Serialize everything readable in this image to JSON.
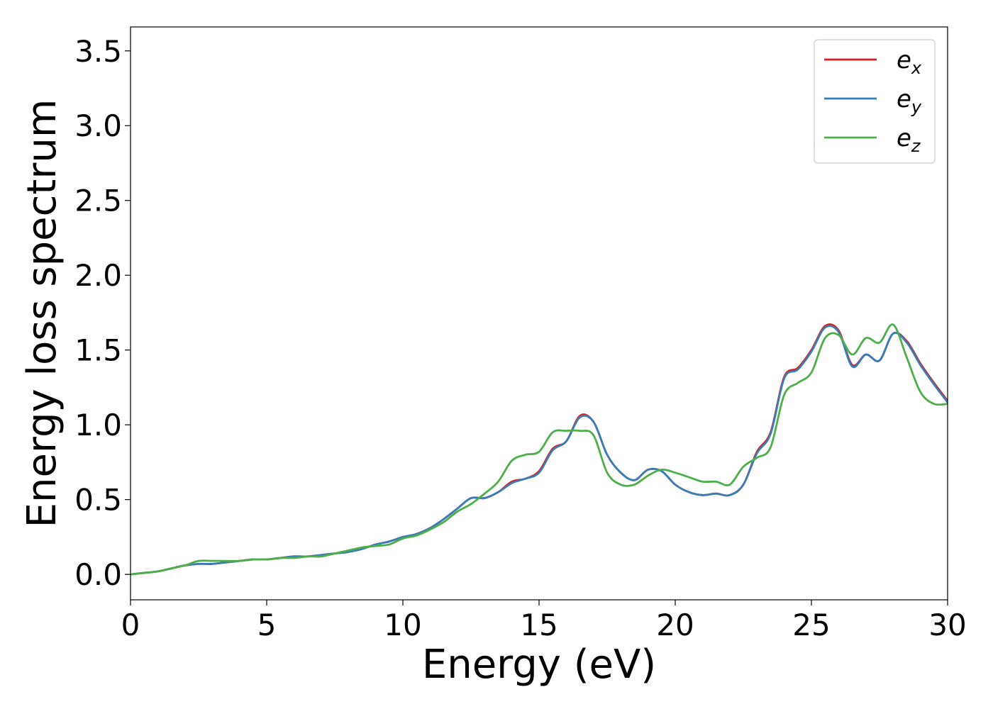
{
  "chart_data": {
    "type": "line",
    "title": "",
    "xlabel": "Energy (eV)",
    "ylabel": "Energy loss spectrum",
    "xlim": [
      0,
      30
    ],
    "ylim": [
      -0.17,
      3.66
    ],
    "xticks": [
      0,
      5,
      10,
      15,
      20,
      25,
      30
    ],
    "xtick_labels": [
      "0",
      "5",
      "10",
      "15",
      "20",
      "25",
      "30"
    ],
    "yticks": [
      0.0,
      0.5,
      1.0,
      1.5,
      2.0,
      2.5,
      3.0,
      3.5
    ],
    "ytick_labels": [
      "0.0",
      "0.5",
      "1.0",
      "1.5",
      "2.0",
      "2.5",
      "3.0",
      "3.5"
    ],
    "grid": false,
    "legend_position": "top-right",
    "series": [
      {
        "name": "e_x",
        "legend_base": "e",
        "legend_sub": "x",
        "color": "#e41a1c",
        "x": [
          0,
          0.5,
          1,
          1.5,
          2,
          2.5,
          3,
          3.5,
          4,
          4.5,
          5,
          5.5,
          6,
          6.5,
          7,
          7.5,
          8,
          8.5,
          9,
          9.5,
          10,
          10.5,
          11,
          11.5,
          12,
          12.5,
          13,
          13.5,
          14,
          14.5,
          15,
          15.5,
          16,
          16.5,
          17,
          17.5,
          18,
          18.5,
          19,
          19.5,
          20,
          20.5,
          21,
          21.5,
          22,
          22.5,
          23,
          23.5,
          24,
          24.5,
          25,
          25.5,
          26,
          26.5,
          27,
          27.5,
          28,
          28.5,
          29,
          29.5,
          30
        ],
        "y": [
          0,
          0.01,
          0.02,
          0.04,
          0.06,
          0.07,
          0.07,
          0.08,
          0.09,
          0.1,
          0.1,
          0.11,
          0.12,
          0.12,
          0.13,
          0.14,
          0.15,
          0.17,
          0.2,
          0.22,
          0.25,
          0.27,
          0.31,
          0.37,
          0.44,
          0.51,
          0.51,
          0.55,
          0.62,
          0.64,
          0.69,
          0.84,
          0.89,
          1.06,
          1.02,
          0.8,
          0.68,
          0.63,
          0.7,
          0.69,
          0.6,
          0.55,
          0.53,
          0.54,
          0.53,
          0.6,
          0.82,
          0.95,
          1.32,
          1.38,
          1.5,
          1.66,
          1.63,
          1.4,
          1.47,
          1.43,
          1.61,
          1.56,
          1.41,
          1.28,
          1.16
        ]
      },
      {
        "name": "e_y",
        "legend_base": "e",
        "legend_sub": "y",
        "color": "#377eb8",
        "x": [
          0,
          0.5,
          1,
          1.5,
          2,
          2.5,
          3,
          3.5,
          4,
          4.5,
          5,
          5.5,
          6,
          6.5,
          7,
          7.5,
          8,
          8.5,
          9,
          9.5,
          10,
          10.5,
          11,
          11.5,
          12,
          12.5,
          13,
          13.5,
          14,
          14.5,
          15,
          15.5,
          16,
          16.5,
          17,
          17.5,
          18,
          18.5,
          19,
          19.5,
          20,
          20.5,
          21,
          21.5,
          22,
          22.5,
          23,
          23.5,
          24,
          24.5,
          25,
          25.5,
          26,
          26.5,
          27,
          27.5,
          28,
          28.5,
          29,
          29.5,
          30
        ],
        "y": [
          0,
          0.01,
          0.02,
          0.04,
          0.06,
          0.07,
          0.07,
          0.08,
          0.09,
          0.1,
          0.1,
          0.11,
          0.12,
          0.12,
          0.13,
          0.14,
          0.15,
          0.17,
          0.2,
          0.22,
          0.25,
          0.27,
          0.31,
          0.37,
          0.44,
          0.51,
          0.51,
          0.55,
          0.61,
          0.64,
          0.68,
          0.83,
          0.89,
          1.05,
          1.02,
          0.8,
          0.68,
          0.63,
          0.7,
          0.69,
          0.6,
          0.55,
          0.53,
          0.54,
          0.53,
          0.6,
          0.81,
          0.94,
          1.31,
          1.37,
          1.49,
          1.65,
          1.62,
          1.39,
          1.47,
          1.43,
          1.61,
          1.55,
          1.4,
          1.27,
          1.15
        ]
      },
      {
        "name": "e_z",
        "legend_base": "e",
        "legend_sub": "z",
        "color": "#4daf4a",
        "x": [
          0,
          0.5,
          1,
          1.5,
          2,
          2.5,
          3,
          3.5,
          4,
          4.5,
          5,
          5.5,
          6,
          6.5,
          7,
          7.5,
          8,
          8.5,
          9,
          9.5,
          10,
          10.5,
          11,
          11.5,
          12,
          12.5,
          13,
          13.5,
          14,
          14.5,
          15,
          15.5,
          16,
          16.5,
          17,
          17.5,
          18,
          18.5,
          19,
          19.5,
          20,
          20.5,
          21,
          21.5,
          22,
          22.5,
          23,
          23.5,
          24,
          24.5,
          25,
          25.5,
          26,
          26.5,
          27,
          27.5,
          28,
          28.5,
          29,
          29.5,
          30
        ],
        "y": [
          0,
          0.01,
          0.02,
          0.04,
          0.06,
          0.09,
          0.09,
          0.09,
          0.09,
          0.1,
          0.1,
          0.11,
          0.11,
          0.12,
          0.12,
          0.14,
          0.16,
          0.18,
          0.19,
          0.2,
          0.24,
          0.26,
          0.3,
          0.35,
          0.42,
          0.47,
          0.54,
          0.62,
          0.76,
          0.8,
          0.82,
          0.95,
          0.96,
          0.96,
          0.93,
          0.68,
          0.6,
          0.6,
          0.66,
          0.7,
          0.68,
          0.65,
          0.62,
          0.62,
          0.6,
          0.72,
          0.78,
          0.85,
          1.2,
          1.28,
          1.35,
          1.58,
          1.6,
          1.47,
          1.58,
          1.55,
          1.67,
          1.45,
          1.22,
          1.14,
          1.14
        ]
      }
    ]
  }
}
